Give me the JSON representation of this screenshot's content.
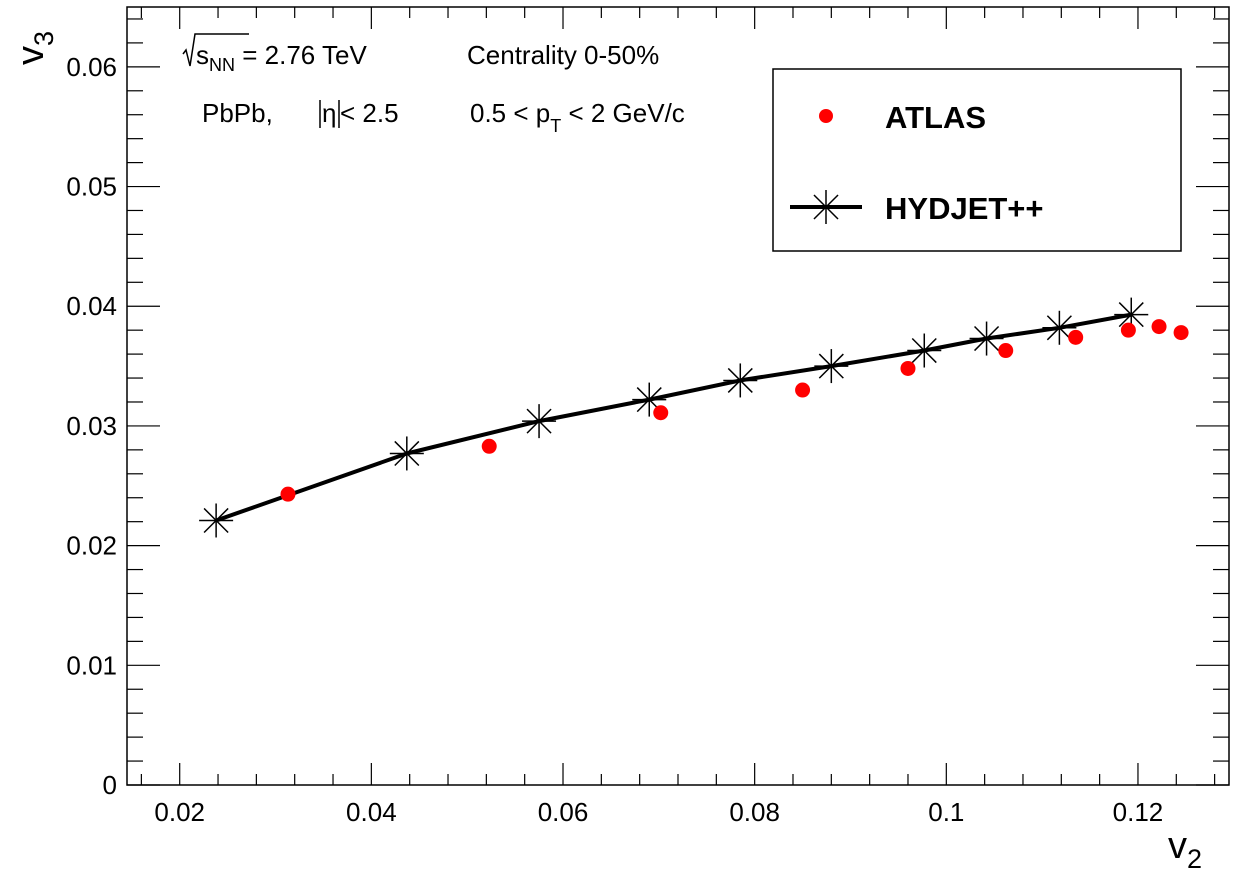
{
  "chart_data": {
    "type": "scatter",
    "xlabel": "v",
    "xlabel_sub": "2",
    "ylabel": "v",
    "ylabel_sub": "3",
    "xlim": [
      0.0145,
      0.1295
    ],
    "ylim": [
      0,
      0.065
    ],
    "x_ticks": [
      0.02,
      0.04,
      0.06,
      0.08,
      0.1,
      0.12
    ],
    "x_tick_labels": [
      "0.02",
      "0.04",
      "0.06",
      "0.08",
      "0.1",
      "0.12"
    ],
    "y_ticks": [
      0,
      0.01,
      0.02,
      0.03,
      0.04,
      0.05,
      0.06
    ],
    "y_tick_labels": [
      "0",
      "0.01",
      "0.02",
      "0.03",
      "0.04",
      "0.05",
      "0.06"
    ],
    "grid": false,
    "legend_position": "top-right",
    "annotations": {
      "energy_sqrt": "s",
      "energy_sub": "NN",
      "energy_value": " = 2.76 TeV",
      "centrality": "Centrality 0-50%",
      "system": "PbPb, ",
      "eta_symbol": "η",
      "eta_cut": " < 2.5",
      "pt_prefix": "0.5 < p",
      "pt_sub": "T",
      "pt_suffix": " < 2 GeV/c"
    },
    "series": [
      {
        "name": "ATLAS",
        "style": "markers",
        "color": "#ff0000",
        "x": [
          0.0313,
          0.0523,
          0.0702,
          0.085,
          0.096,
          0.1062,
          0.1135,
          0.119,
          0.1222,
          0.1245
        ],
        "y": [
          0.0243,
          0.0283,
          0.0311,
          0.033,
          0.0348,
          0.0363,
          0.0374,
          0.038,
          0.0383,
          0.0378
        ]
      },
      {
        "name": "HYDJET++",
        "style": "line-star",
        "color": "#000000",
        "x": [
          0.0238,
          0.0437,
          0.0575,
          0.069,
          0.0785,
          0.088,
          0.0977,
          0.1042,
          0.1118,
          0.1193
        ],
        "y": [
          0.0221,
          0.0277,
          0.0304,
          0.0322,
          0.0338,
          0.035,
          0.0363,
          0.0373,
          0.0382,
          0.0393
        ]
      }
    ]
  }
}
